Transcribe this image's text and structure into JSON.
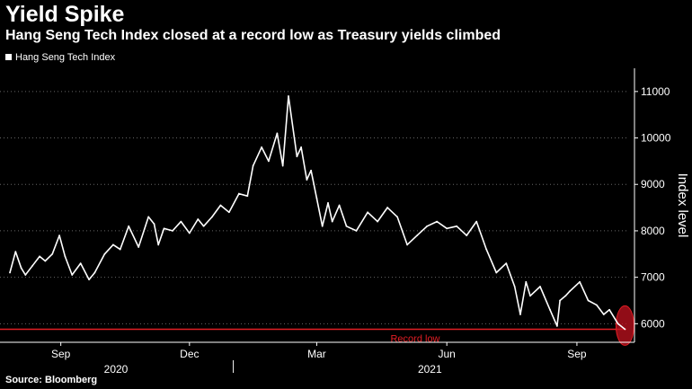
{
  "header": {
    "title": "Yield Spike",
    "subtitle": "Hang Seng Tech Index closed at a record low as Treasury yields climbed"
  },
  "legend": {
    "label": "Hang Seng Tech Index"
  },
  "footer": {
    "source": "Source: Bloomberg"
  },
  "colors": {
    "background": "#000000",
    "line": "#ffffff",
    "record_line": "#e31e24",
    "record_text": "#e31e24",
    "highlight_fill": "#c1121f",
    "gridline": "#666666"
  },
  "chart_data": {
    "type": "line",
    "title": "Yield Spike",
    "subtitle": "Hang Seng Tech Index closed at a record low as Treasury yields climbed",
    "xlabel": "",
    "ylabel": "Index level",
    "y_axis_side": "right",
    "ylim": [
      5600,
      11500
    ],
    "yticks": [
      6000,
      7000,
      8000,
      9000,
      10000,
      11000
    ],
    "xlim": [
      "2020-07-20",
      "2021-10-06"
    ],
    "x_ticks": [
      {
        "date": "2020-09-01",
        "label": "Sep"
      },
      {
        "date": "2020-12-01",
        "label": "Dec"
      },
      {
        "date": "2021-03-01",
        "label": "Mar"
      },
      {
        "date": "2021-06-01",
        "label": "Jun"
      },
      {
        "date": "2021-09-01",
        "label": "Sep"
      }
    ],
    "year_labels": [
      {
        "label": "2020",
        "from": "2020-07-20",
        "to": "2020-12-31"
      },
      {
        "label": "2021",
        "from": "2021-01-01",
        "to": "2021-10-06"
      }
    ],
    "grid": "horizontal dotted",
    "legend_position": "top-left",
    "series": [
      {
        "name": "Hang Seng Tech Index",
        "x": [
          "2020-07-27",
          "2020-07-31",
          "2020-08-04",
          "2020-08-07",
          "2020-08-12",
          "2020-08-17",
          "2020-08-21",
          "2020-08-26",
          "2020-08-31",
          "2020-09-04",
          "2020-09-09",
          "2020-09-15",
          "2020-09-21",
          "2020-09-25",
          "2020-10-02",
          "2020-10-08",
          "2020-10-13",
          "2020-10-19",
          "2020-10-26",
          "2020-11-02",
          "2020-11-06",
          "2020-11-09",
          "2020-11-13",
          "2020-11-19",
          "2020-11-25",
          "2020-12-01",
          "2020-12-07",
          "2020-12-11",
          "2020-12-17",
          "2020-12-23",
          "2020-12-29",
          "2021-01-05",
          "2021-01-11",
          "2021-01-15",
          "2021-01-21",
          "2021-01-26",
          "2021-02-01",
          "2021-02-05",
          "2021-02-09",
          "2021-02-15",
          "2021-02-18",
          "2021-02-22",
          "2021-02-25",
          "2021-03-01",
          "2021-03-05",
          "2021-03-09",
          "2021-03-12",
          "2021-03-17",
          "2021-03-22",
          "2021-03-29",
          "2021-04-06",
          "2021-04-13",
          "2021-04-20",
          "2021-04-27",
          "2021-05-04",
          "2021-05-11",
          "2021-05-18",
          "2021-05-25",
          "2021-06-01",
          "2021-06-08",
          "2021-06-15",
          "2021-06-22",
          "2021-06-29",
          "2021-07-06",
          "2021-07-13",
          "2021-07-19",
          "2021-07-23",
          "2021-07-27",
          "2021-07-30",
          "2021-08-06",
          "2021-08-13",
          "2021-08-18",
          "2021-08-20",
          "2021-08-24",
          "2021-08-27",
          "2021-09-03",
          "2021-09-09",
          "2021-09-15",
          "2021-09-20",
          "2021-09-24",
          "2021-09-30",
          "2021-10-05"
        ],
        "values": [
          7100,
          7550,
          7200,
          7050,
          7250,
          7450,
          7350,
          7500,
          7900,
          7450,
          7050,
          7300,
          6950,
          7100,
          7500,
          7700,
          7600,
          8100,
          7650,
          8300,
          8150,
          7700,
          8050,
          8000,
          8200,
          7950,
          8250,
          8100,
          8300,
          8550,
          8400,
          8800,
          8750,
          9400,
          9800,
          9500,
          10100,
          9400,
          10900,
          9600,
          9800,
          9100,
          9300,
          8700,
          8100,
          8600,
          8200,
          8550,
          8100,
          8000,
          8400,
          8200,
          8500,
          8300,
          7700,
          7900,
          8100,
          8200,
          8050,
          8100,
          7900,
          8200,
          7600,
          7100,
          7300,
          6800,
          6200,
          6900,
          6600,
          6800,
          6300,
          5950,
          6500,
          6600,
          6700,
          6900,
          6500,
          6400,
          6200,
          6300,
          6000,
          5880
        ]
      }
    ],
    "reference_lines": [
      {
        "y": 5880,
        "label": "Record low"
      }
    ],
    "annotations": [
      {
        "type": "highlight-ellipse",
        "x": "2021-10-05",
        "y": 5960
      }
    ]
  }
}
